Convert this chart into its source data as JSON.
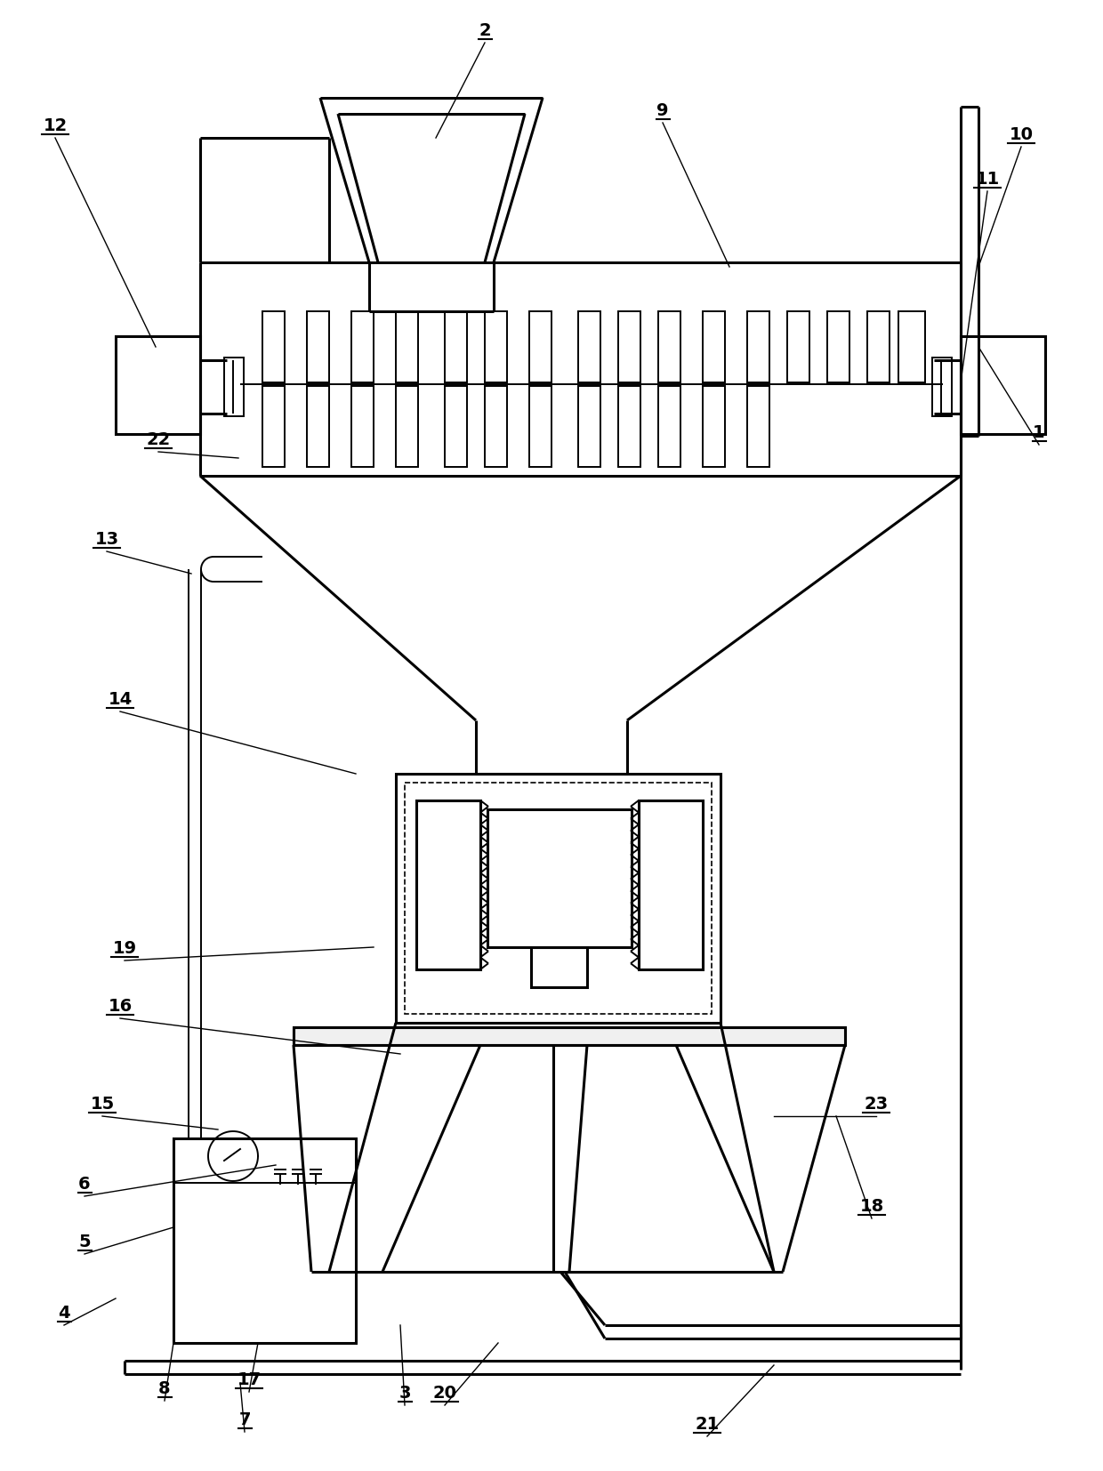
{
  "bg": "#ffffff",
  "lc": "#000000",
  "lw": 2.2,
  "tlw": 1.4,
  "figsize": [
    12.4,
    16.54
  ],
  "dpi": 100,
  "labels": [
    [
      "1",
      1168,
      500,
      1100,
      390
    ],
    [
      "2",
      545,
      48,
      490,
      155
    ],
    [
      "3",
      455,
      1580,
      450,
      1490
    ],
    [
      "4",
      72,
      1490,
      130,
      1460
    ],
    [
      "5",
      95,
      1410,
      195,
      1380
    ],
    [
      "6",
      95,
      1345,
      310,
      1310
    ],
    [
      "7",
      275,
      1610,
      270,
      1555
    ],
    [
      "8",
      185,
      1575,
      195,
      1510
    ],
    [
      "9",
      745,
      138,
      820,
      300
    ],
    [
      "10",
      1148,
      165,
      1100,
      300
    ],
    [
      "11",
      1110,
      215,
      1080,
      430
    ],
    [
      "12",
      62,
      155,
      175,
      390
    ],
    [
      "13",
      120,
      620,
      215,
      645
    ],
    [
      "14",
      135,
      800,
      400,
      870
    ],
    [
      "15",
      115,
      1255,
      245,
      1270
    ],
    [
      "16",
      135,
      1145,
      450,
      1185
    ],
    [
      "17",
      280,
      1565,
      290,
      1510
    ],
    [
      "18",
      980,
      1370,
      940,
      1255
    ],
    [
      "19",
      140,
      1080,
      420,
      1065
    ],
    [
      "20",
      500,
      1580,
      560,
      1510
    ],
    [
      "21",
      795,
      1615,
      870,
      1535
    ],
    [
      "22",
      178,
      508,
      268,
      515
    ],
    [
      "23",
      985,
      1255,
      870,
      1255
    ]
  ]
}
